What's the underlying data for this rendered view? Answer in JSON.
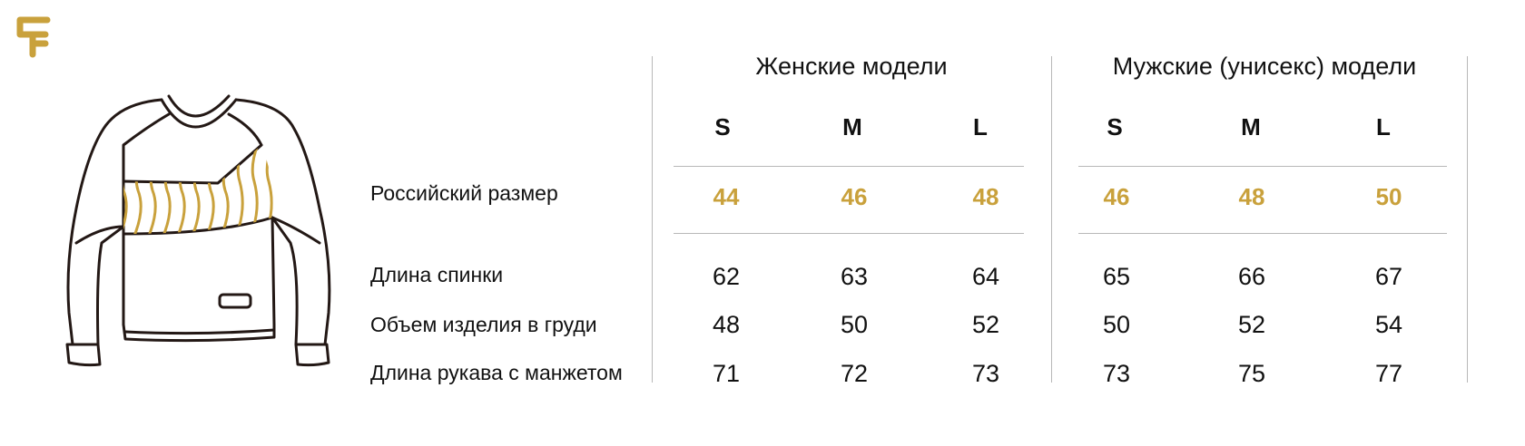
{
  "colors": {
    "accent": "#C9A13C",
    "text": "#111111",
    "line": "#b8b8b8",
    "outline": "#231815"
  },
  "icons": {
    "logo": "brand-logo-icon",
    "garment": "sweatshirt-icon"
  },
  "row_labels": {
    "ru_size": "Российский размер",
    "back_length": "Длина спинки",
    "chest": "Объем изделия в груди",
    "sleeve": "Длина рукава с манжетом"
  },
  "women": {
    "title": "Женские модели",
    "sizes": [
      "S",
      "M",
      "L"
    ],
    "ru_sizes": [
      "44",
      "46",
      "48"
    ],
    "back_length": [
      "62",
      "63",
      "64"
    ],
    "chest": [
      "48",
      "50",
      "52"
    ],
    "sleeve": [
      "71",
      "72",
      "73"
    ]
  },
  "men": {
    "title": "Мужские (унисекс) модели",
    "sizes": [
      "S",
      "M",
      "L"
    ],
    "ru_sizes": [
      "46",
      "48",
      "50"
    ],
    "back_length": [
      "65",
      "66",
      "67"
    ],
    "chest": [
      "50",
      "52",
      "54"
    ],
    "sleeve": [
      "73",
      "75",
      "77"
    ]
  }
}
